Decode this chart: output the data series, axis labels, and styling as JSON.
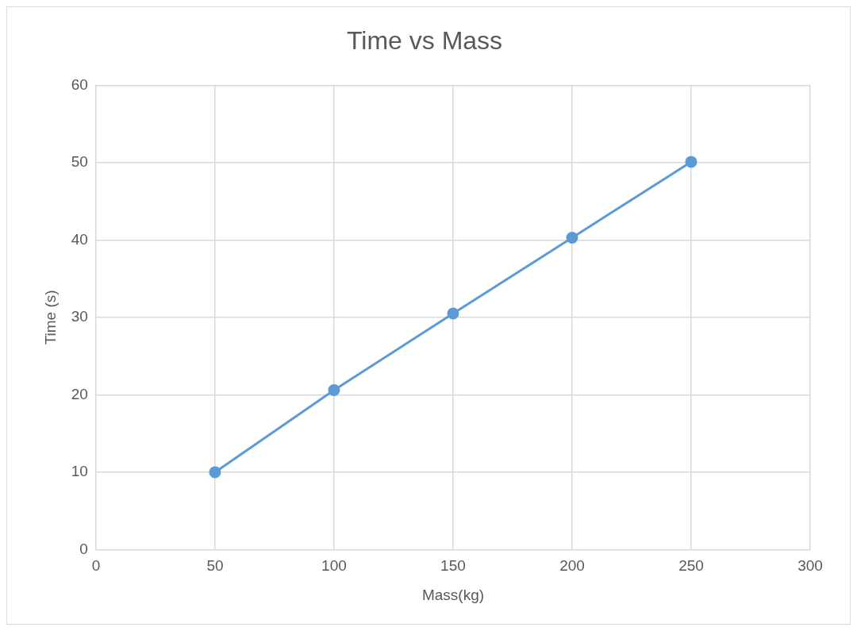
{
  "chart_data": {
    "type": "line",
    "title": "Time vs Mass",
    "xlabel": "Mass(kg)",
    "ylabel": "Time (s)",
    "x": [
      50,
      100,
      150,
      200,
      250
    ],
    "series": [
      {
        "color": "#5b9bd5",
        "values": [
          10,
          20.6,
          30.5,
          40.3,
          50.1
        ]
      }
    ],
    "xlim": [
      0,
      300
    ],
    "xticks": [
      0,
      50,
      100,
      150,
      200,
      250,
      300
    ],
    "ylim": [
      0,
      60
    ],
    "yticks": [
      0,
      10,
      20,
      30,
      40,
      50,
      60
    ],
    "grid": true,
    "legend": false,
    "marker": "circle",
    "line_style": "solid"
  }
}
